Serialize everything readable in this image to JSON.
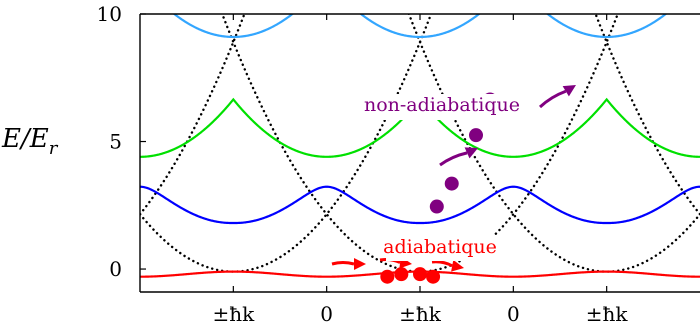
{
  "chart_data": {
    "type": "line",
    "title": "",
    "xlabel": "",
    "ylabel": "E/E",
    "ylabel_sub": "r",
    "ylim": [
      -0.9,
      10
    ],
    "xlim": [
      -1.5,
      1.5
    ],
    "x_ticks": [
      {
        "x": -1,
        "label": "±ħk"
      },
      {
        "x": -0.5,
        "label": "0"
      },
      {
        "x": 0,
        "label": "±ħk"
      },
      {
        "x": 0.5,
        "label": "0"
      },
      {
        "x": 1,
        "label": "±ħk"
      }
    ],
    "y_ticks": [
      {
        "y": 0,
        "label": "0"
      },
      {
        "y": 5,
        "label": "5"
      },
      {
        "y": 10,
        "label": "10"
      }
    ],
    "grid": false,
    "series": [
      {
        "name": "",
        "color": "#ff0000",
        "style": "solid",
        "band": 0
      },
      {
        "name": "",
        "color": "#0000ff",
        "style": "solid",
        "band": 1
      },
      {
        "name": "",
        "color": "#00e000",
        "style": "solid",
        "band": 2
      },
      {
        "name": "",
        "color": "#33a6ff",
        "style": "solid",
        "band": 3
      },
      {
        "name": "",
        "color": "#000000",
        "style": "dotted",
        "band": "free-particle parabolas"
      }
    ],
    "points": {
      "adiabatic": [
        {
          "x": -0.175,
          "y": -0.3
        },
        {
          "x": -0.1,
          "y": -0.2
        },
        {
          "x": 0.0,
          "y": -0.2
        },
        {
          "x": 0.07,
          "y": -0.3
        }
      ],
      "non_adiabatic": [
        {
          "x": 0.09,
          "y": 2.45
        },
        {
          "x": 0.17,
          "y": 3.35
        },
        {
          "x": 0.3,
          "y": 5.25
        },
        {
          "x": 0.375,
          "y": 6.65
        }
      ]
    },
    "annotations": [
      {
        "text": "adiabatique",
        "color": "#ff0000"
      },
      {
        "text": "non-adiabatique",
        "color": "#800080"
      }
    ]
  }
}
